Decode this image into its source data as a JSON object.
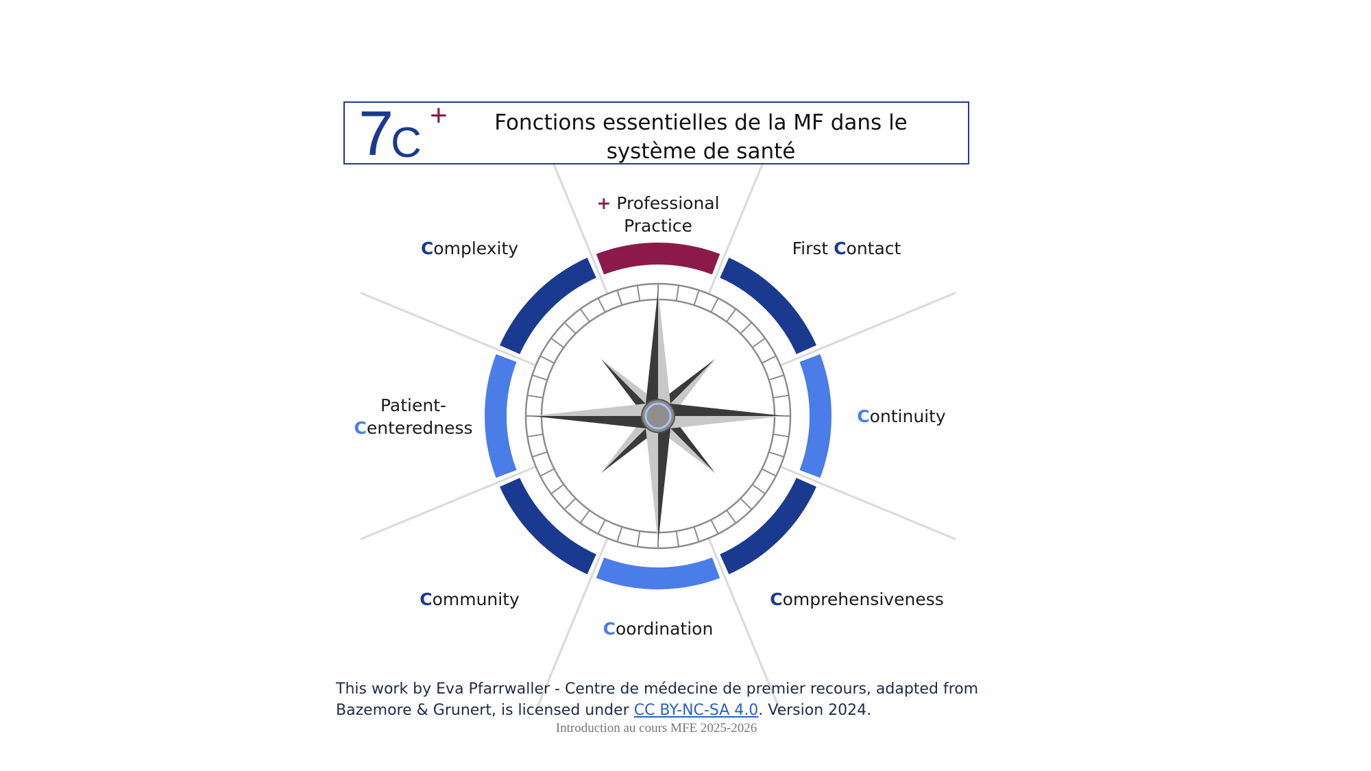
{
  "title": {
    "logo_number": "7",
    "logo_letter": "C",
    "logo_plus": "+",
    "line1": "Fonctions essentielles de la MF dans le",
    "line2": "système de santé"
  },
  "labels": {
    "professional_plus": "+",
    "professional_line1": "Professional",
    "professional_line2": "Practice",
    "first_contact_prefix": "First ",
    "first_contact_c": "C",
    "first_contact_rest": "ontact",
    "continuity_c": "C",
    "continuity_rest": "ontinuity",
    "comprehensiveness_c": "C",
    "comprehensiveness_rest": "omprehensiveness",
    "coordination_c": "C",
    "coordination_rest": "oordination",
    "community_c": "C",
    "community_rest": "ommunity",
    "patient_line1": "Patient-",
    "patient_c": "C",
    "patient_rest": "enteredness",
    "complexity_c": "C",
    "complexity_rest": "omplexity"
  },
  "footer": {
    "text1": "This work by Eva Pfarrwaller - Centre de médecine de premier recours, adapted from",
    "text2": "Bazemore & Grunert, is licensed under ",
    "link": "CC BY-NC-SA 4.0",
    "text3": ". Version 2024."
  },
  "course": "Introduction au cours MFE 2025-2026",
  "colors": {
    "dark_blue": "#1a3a8f",
    "light_blue": "#4a7de8",
    "maroon": "#8b1a4a"
  }
}
